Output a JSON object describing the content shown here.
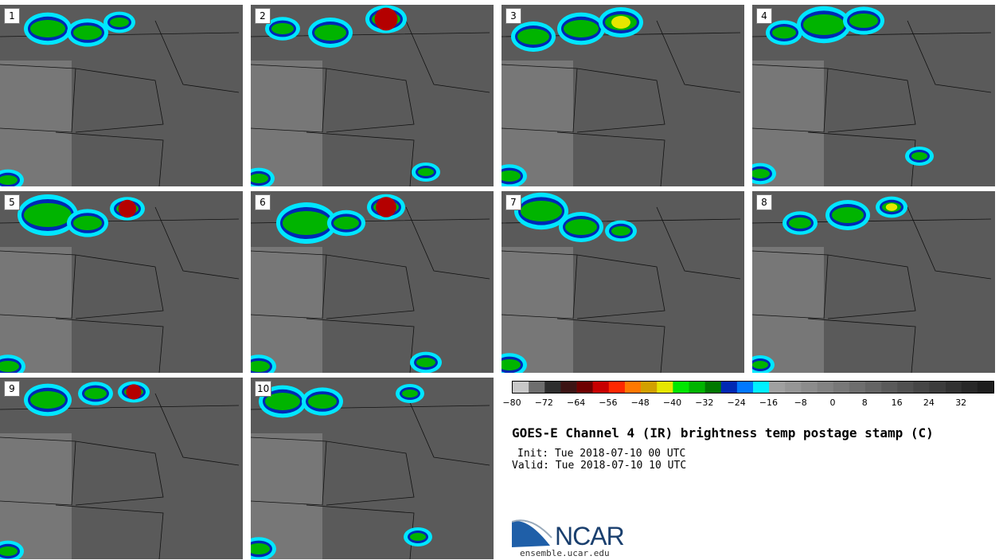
{
  "panels": [
    {
      "label": "1"
    },
    {
      "label": "2"
    },
    {
      "label": "3"
    },
    {
      "label": "4"
    },
    {
      "label": "5"
    },
    {
      "label": "6"
    },
    {
      "label": "7"
    },
    {
      "label": "8"
    },
    {
      "label": "9"
    },
    {
      "label": "10"
    }
  ],
  "colorbar": {
    "colors": [
      "#c8c8c8",
      "#6e6e6e",
      "#2e2e2e",
      "#3c1414",
      "#6e0000",
      "#c80000",
      "#ff2800",
      "#ff7800",
      "#d2a000",
      "#e6e600",
      "#00e600",
      "#00b400",
      "#007800",
      "#0028b4",
      "#0078ff",
      "#00f0ff",
      "#a0a0a0",
      "#969696",
      "#8c8c8c",
      "#828282",
      "#787878",
      "#6e6e6e",
      "#646464",
      "#5a5a5a",
      "#505050",
      "#464646",
      "#3c3c3c",
      "#323232",
      "#282828",
      "#1e1e1e"
    ],
    "ticks": [
      "−80",
      "−72",
      "−64",
      "−56",
      "−48",
      "−40",
      "−32",
      "−24",
      "−16",
      "−8",
      "0",
      "8",
      "16",
      "24",
      "32"
    ]
  },
  "title": "GOES-E Channel 4 (IR) brightness temp postage stamp (C)",
  "init": "Init: Tue 2018-07-10 00 UTC",
  "valid": "Valid: Tue 2018-07-10 10 UTC",
  "logo": {
    "text": "NCAR",
    "url": "ensemble.ucar.edu"
  }
}
